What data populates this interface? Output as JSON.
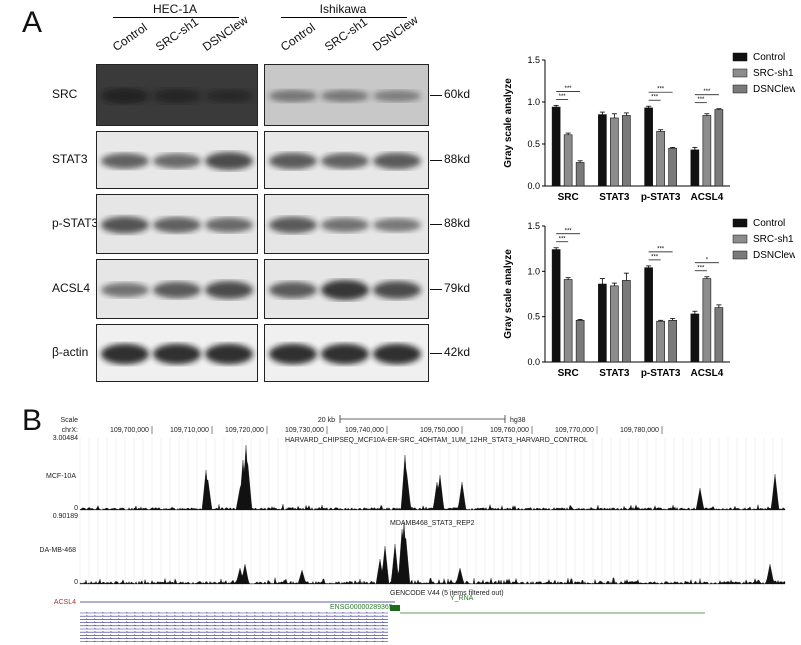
{
  "panel_a": {
    "letter": "A",
    "cell_lines": [
      "HEC-1A",
      "Ishikawa"
    ],
    "lanes": [
      "Control",
      "SRC-sh1",
      "DSNClew"
    ],
    "blots": [
      {
        "name": "SRC",
        "kd": "60kd",
        "bg": "#3a3a3a",
        "bands": [
          0.55,
          0.45,
          0.35
        ],
        "bg2": "#c8c8c8",
        "bands2": [
          0.3,
          0.28,
          0.25
        ]
      },
      {
        "name": "STAT3",
        "kd": "88kd",
        "bg": "#e8e8e8",
        "bands": [
          0.55,
          0.5,
          0.7
        ],
        "bg2": "#e8e8e8",
        "bands2": [
          0.6,
          0.55,
          0.6
        ]
      },
      {
        "name": "p-STAT3",
        "kd": "88kd",
        "bg": "#e6e6e6",
        "bands": [
          0.65,
          0.55,
          0.5
        ],
        "bg2": "#e6e6e6",
        "bands2": [
          0.6,
          0.45,
          0.4
        ]
      },
      {
        "name": "ACSL4",
        "kd": "79kd",
        "bg": "#e6e6e6",
        "bands": [
          0.45,
          0.6,
          0.7
        ],
        "bg2": "#e6e6e6",
        "bands2": [
          0.6,
          0.85,
          0.7
        ]
      },
      {
        "name": "β-actin",
        "kd": "42kd",
        "bg": "#f0f0f0",
        "bands": [
          0.9,
          0.9,
          0.9
        ],
        "bg2": "#f0f0f0",
        "bands2": [
          0.9,
          0.9,
          0.9
        ]
      }
    ]
  },
  "chart_data": [
    {
      "type": "bar",
      "categories": [
        "SRC",
        "STAT3",
        "p-STAT3",
        "ACSL4"
      ],
      "series": [
        {
          "name": "Control",
          "values": [
            0.94,
            0.85,
            0.93,
            0.43
          ],
          "errors": [
            0.02,
            0.03,
            0.02,
            0.03
          ]
        },
        {
          "name": "SRC-sh1",
          "values": [
            0.61,
            0.81,
            0.65,
            0.84
          ],
          "errors": [
            0.02,
            0.05,
            0.02,
            0.02
          ]
        },
        {
          "name": "DSNClew",
          "values": [
            0.28,
            0.84,
            0.45,
            0.91
          ],
          "errors": [
            0.02,
            0.03,
            0.01,
            0.01
          ]
        }
      ],
      "ylabel": "Gray scale analyze",
      "ylim": [
        0,
        1.5
      ],
      "yticks": [
        "0.0",
        "0.5",
        "1.0",
        "1.5"
      ],
      "significance": [
        "***",
        "***",
        "***",
        "***",
        "***",
        "***"
      ],
      "legend": "right",
      "colors": [
        "#111111",
        "#8c8c8c",
        "#7a7a7a"
      ]
    },
    {
      "type": "bar",
      "categories": [
        "SRC",
        "STAT3",
        "p-STAT3",
        "ACSL4"
      ],
      "series": [
        {
          "name": "Control",
          "values": [
            1.24,
            0.86,
            1.04,
            0.53
          ],
          "errors": [
            0.02,
            0.06,
            0.02,
            0.03
          ]
        },
        {
          "name": "SRC-sh1",
          "values": [
            0.91,
            0.84,
            0.45,
            0.92
          ],
          "errors": [
            0.02,
            0.03,
            0.01,
            0.02
          ]
        },
        {
          "name": "DSNClew",
          "values": [
            0.46,
            0.9,
            0.46,
            0.6
          ],
          "errors": [
            0.01,
            0.08,
            0.02,
            0.03
          ]
        }
      ],
      "ylabel": "Gray scale analyze",
      "ylim": [
        0,
        1.5
      ],
      "yticks": [
        "0.0",
        "0.5",
        "1.0",
        "1.5"
      ],
      "significance": [
        "***",
        "***",
        "***",
        "***",
        "***",
        "*"
      ],
      "legend": "right",
      "colors": [
        "#111111",
        "#8c8c8c",
        "#7a7a7a"
      ]
    }
  ],
  "panel_b": {
    "letter": "B",
    "scale_label": "Scale",
    "chr_label": "chrX:",
    "scale_text": "20 kb",
    "assembly": "hg38",
    "coords": [
      "109,700,000",
      "109,710,000",
      "109,720,000",
      "109,730,000",
      "109,740,000",
      "109,750,000",
      "109,760,000",
      "109,770,000",
      "109,780,000"
    ],
    "track1": {
      "max": "3.00484",
      "zero": "0",
      "label": "MCF-10A",
      "title": "HARVARD_CHIPSEQ_MCF10A-ER-SRC_4OHTAM_1UM_12HR_STAT3_HARVARD_CONTROL"
    },
    "track2": {
      "max": "0.90189",
      "zero": "0",
      "label": "MDA-MB-468",
      "title": "MDAMB468_STAT3_REP2"
    },
    "gencode": "GENCODE V44 (5 items filtered out)",
    "gene": "ACSL4",
    "ensg": "ENSG00000289365",
    "yrna": "Y_RNA"
  }
}
